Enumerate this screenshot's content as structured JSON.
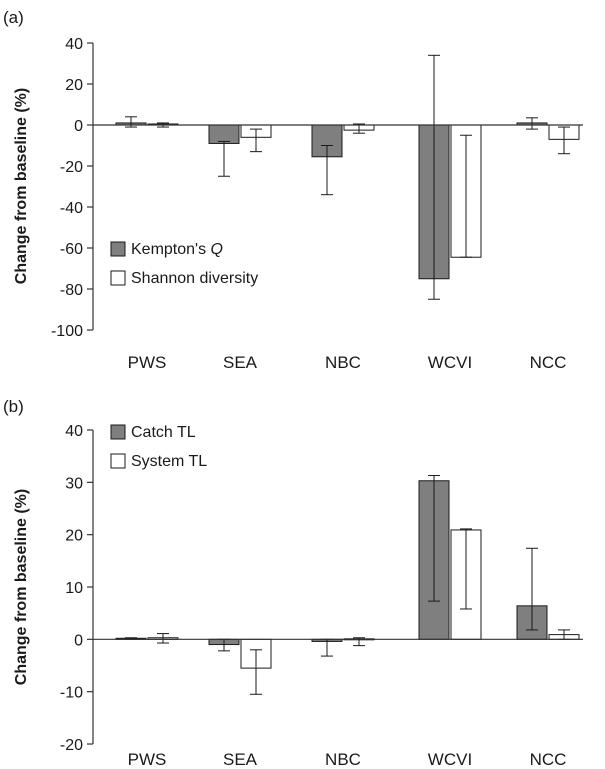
{
  "chart_data": [
    {
      "type": "bar",
      "panel_label": "(a)",
      "ylabel": "Change from baseline (%)",
      "categories": [
        "PWS",
        "SEA",
        "NBC",
        "WCVI",
        "NCC"
      ],
      "ylim": [
        -100,
        40
      ],
      "yticks": [
        40,
        20,
        0,
        -20,
        -40,
        -60,
        -80,
        -100
      ],
      "grid": false,
      "legend_position": "lower-left",
      "series": [
        {
          "name": "Kempton's Q",
          "name_prefix": "Kempton's ",
          "name_italic": "Q",
          "color": "#7f7f7f",
          "values": [
            1,
            -9,
            -15.5,
            -75,
            1
          ],
          "err_low": [
            -1,
            -25,
            -34,
            -85,
            -2
          ],
          "err_high": [
            4,
            -8,
            -10,
            34,
            3.5
          ]
        },
        {
          "name": "Shannon diversity",
          "color": "#ffffff",
          "values": [
            0.5,
            -6,
            -2.5,
            -64.5,
            -7
          ],
          "err_low": [
            -1,
            -13,
            -4,
            -64.5,
            -14
          ],
          "err_high": [
            1,
            -2,
            0.5,
            -5,
            -1
          ]
        }
      ]
    },
    {
      "type": "bar",
      "panel_label": "(b)",
      "ylabel": "Change from baseline (%)",
      "categories": [
        "PWS",
        "SEA",
        "NBC",
        "WCVI",
        "NCC"
      ],
      "ylim": [
        -20,
        40
      ],
      "yticks": [
        40,
        30,
        20,
        10,
        0,
        -10,
        -20
      ],
      "grid": false,
      "legend_position": "top-left",
      "series": [
        {
          "name": "Catch TL",
          "color": "#7f7f7f",
          "values": [
            0.2,
            -1,
            -0.4,
            30.3,
            6.4
          ],
          "err_low": [
            0,
            -2.2,
            -3.2,
            7.3,
            1.8
          ],
          "err_high": [
            0.3,
            0,
            0,
            31.3,
            17.4
          ]
        },
        {
          "name": "System TL",
          "color": "#ffffff",
          "values": [
            0.3,
            -5.5,
            0.1,
            20.9,
            0.9
          ],
          "err_low": [
            -0.7,
            -10.5,
            -1.2,
            5.8,
            0
          ],
          "err_high": [
            1.1,
            -2,
            0.3,
            21.1,
            1.8
          ]
        }
      ]
    }
  ]
}
